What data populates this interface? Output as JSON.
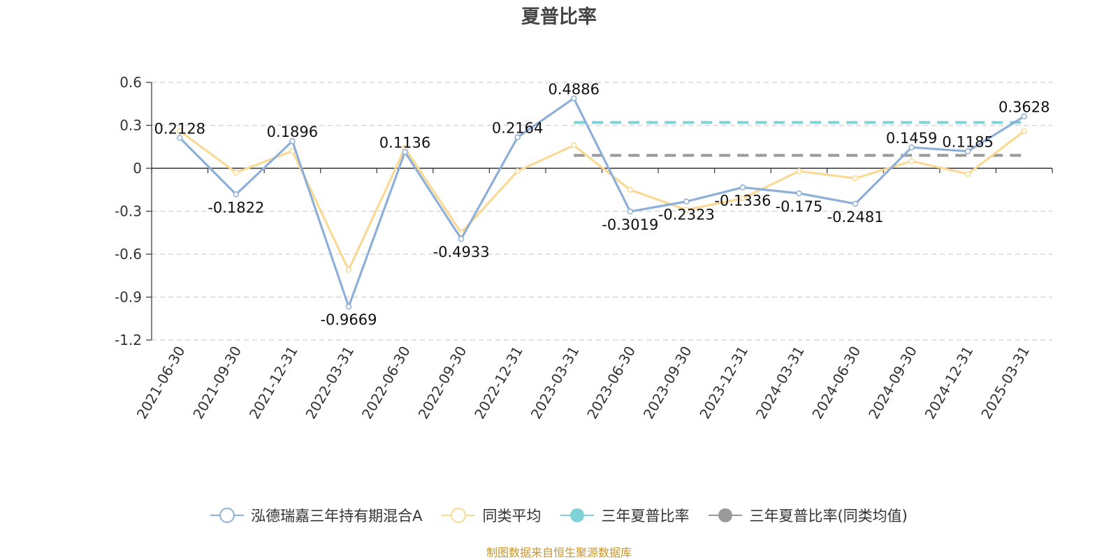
{
  "chart_data": {
    "type": "line",
    "title": "夏普比率",
    "categories": [
      "2021-06-30",
      "2021-09-30",
      "2021-12-31",
      "2022-03-31",
      "2022-06-30",
      "2022-09-30",
      "2022-12-31",
      "2023-03-31",
      "2023-06-30",
      "2023-09-30",
      "2023-12-31",
      "2024-03-31",
      "2024-06-30",
      "2024-09-30",
      "2024-12-31",
      "2025-03-31"
    ],
    "yticks": [
      "0.6",
      "0.3",
      "0",
      "-0.3",
      "-0.6",
      "-0.9",
      "-1.2"
    ],
    "ylim": [
      -1.2,
      0.6
    ],
    "grid": true,
    "legend_position": "bottom",
    "series": [
      {
        "name": "泓德瑞嘉三年持有期混合A",
        "color": "#8eafd8",
        "values": [
          0.2128,
          -0.1822,
          0.1896,
          -0.9669,
          0.1136,
          -0.4933,
          0.2164,
          0.4886,
          -0.3019,
          -0.2323,
          -0.1336,
          -0.175,
          -0.2481,
          0.1459,
          0.1185,
          0.3628
        ],
        "labels": [
          "0.2128",
          "-0.1822",
          "0.1896",
          "-0.9669",
          "0.1136",
          "-0.4933",
          "0.2164",
          "0.4886",
          "-0.3019",
          "-0.2323",
          "-0.1336",
          "-0.175",
          "-0.2481",
          "0.1459",
          "0.1185",
          "0.3628"
        ]
      },
      {
        "name": "同类平均",
        "color": "#fad994",
        "values": [
          0.26,
          -0.03,
          0.12,
          -0.71,
          0.14,
          -0.45,
          -0.02,
          0.16,
          -0.15,
          -0.29,
          -0.21,
          -0.02,
          -0.07,
          0.05,
          -0.04,
          0.26
        ]
      },
      {
        "name": "三年夏普比率",
        "color": "#7fd3d8",
        "style": "dashed",
        "x_range": [
          "2023-03-31",
          "2025-03-31"
        ],
        "value": 0.32
      },
      {
        "name": "三年夏普比率(同类均值)",
        "color": "#9a9a9a",
        "style": "dashed",
        "x_range": [
          "2023-03-31",
          "2025-03-31"
        ],
        "value": 0.09
      }
    ]
  },
  "source_note": "制图数据来自恒生聚源数据库"
}
